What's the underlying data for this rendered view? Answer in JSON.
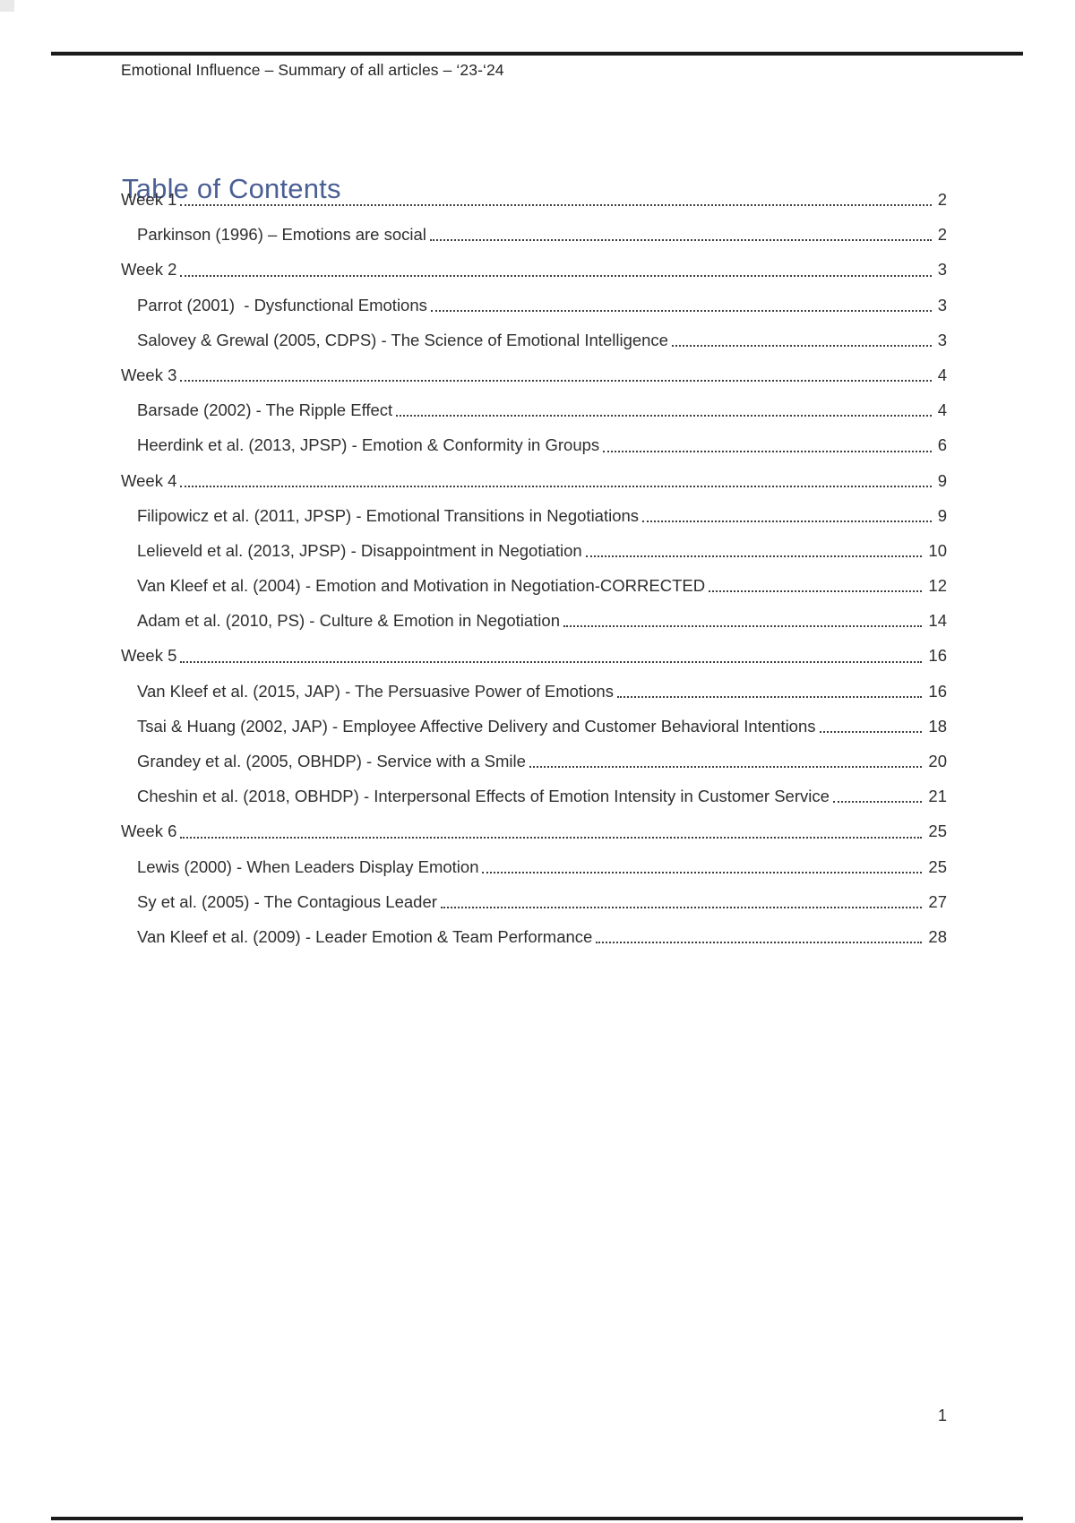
{
  "document": {
    "header_text": "Emotional Influence – Summary of all articles – ‘23-‘24",
    "footer_page_number": "1"
  },
  "toc": {
    "title": "Table of Contents",
    "title_color": "#4a5f94",
    "entries": [
      {
        "level": 1,
        "label": "Week 1",
        "page": "2"
      },
      {
        "level": 2,
        "label": "Parkinson (1996) – Emotions are social",
        "page": "2"
      },
      {
        "level": 1,
        "label": "Week 2",
        "page": "3"
      },
      {
        "level": 2,
        "label": "Parrot (2001)  - Dysfunctional Emotions",
        "page": "3"
      },
      {
        "level": 2,
        "label": "Salovey & Grewal (2005, CDPS) - The Science of Emotional Intelligence",
        "page": "3"
      },
      {
        "level": 1,
        "label": "Week 3",
        "page": "4"
      },
      {
        "level": 2,
        "label": "Barsade (2002) - The Ripple Effect",
        "page": "4"
      },
      {
        "level": 2,
        "label": "Heerdink et al. (2013, JPSP) - Emotion & Conformity in Groups",
        "page": "6"
      },
      {
        "level": 1,
        "label": "Week 4",
        "page": "9"
      },
      {
        "level": 2,
        "label": "Filipowicz et al. (2011, JPSP) - Emotional Transitions in Negotiations",
        "page": "9"
      },
      {
        "level": 2,
        "label": "Lelieveld et al. (2013, JPSP) - Disappointment in Negotiation",
        "page": "10"
      },
      {
        "level": 2,
        "label": "Van Kleef et al. (2004) - Emotion and Motivation in Negotiation-CORRECTED",
        "page": "12"
      },
      {
        "level": 2,
        "label": "Adam et al. (2010, PS) - Culture & Emotion in Negotiation",
        "page": "14"
      },
      {
        "level": 1,
        "label": "Week 5",
        "page": "16"
      },
      {
        "level": 2,
        "label": "Van Kleef et al. (2015, JAP) - The Persuasive Power of Emotions",
        "page": "16"
      },
      {
        "level": 2,
        "label": "Tsai & Huang (2002, JAP) - Employee Affective Delivery and Customer Behavioral Intentions",
        "page": "18"
      },
      {
        "level": 2,
        "label": "Grandey et al. (2005, OBHDP) - Service with a Smile",
        "page": "20"
      },
      {
        "level": 2,
        "label": "Cheshin et al. (2018, OBHDP) - Interpersonal Effects of Emotion Intensity in Customer Service",
        "page": "21"
      },
      {
        "level": 1,
        "label": "Week 6",
        "page": "25"
      },
      {
        "level": 2,
        "label": "Lewis (2000) - When Leaders Display Emotion",
        "page": "25"
      },
      {
        "level": 2,
        "label": "Sy et al. (2005) - The Contagious Leader",
        "page": "27"
      },
      {
        "level": 2,
        "label": "Van Kleef et al. (2009) - Leader Emotion & Team Performance",
        "page": "28"
      }
    ]
  }
}
